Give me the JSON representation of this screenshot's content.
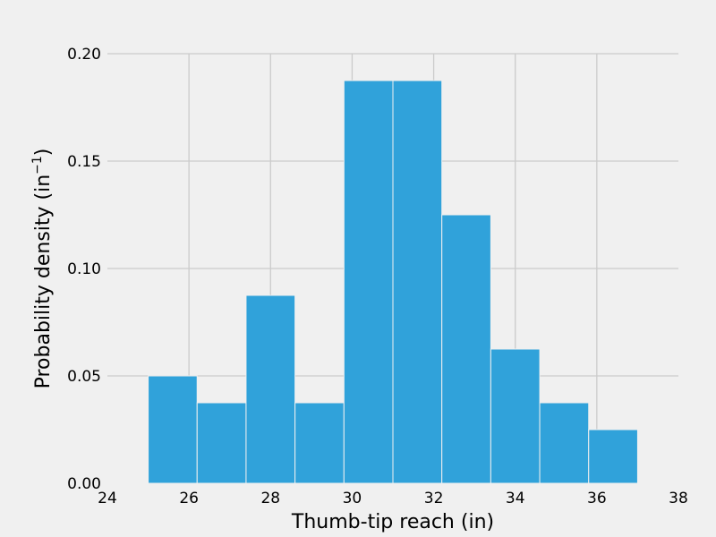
{
  "chart_data": {
    "type": "bar",
    "title": "",
    "xlabel": "Thumb-tip reach (in)",
    "ylabel": "Probability density (in",
    "ylabel_superscript": "−1",
    "ylabel_suffix": ")",
    "xlim": [
      24,
      38
    ],
    "ylim": [
      0,
      0.2
    ],
    "xticks": [
      24,
      26,
      28,
      30,
      32,
      34,
      36,
      38
    ],
    "xtick_labels": [
      "24",
      "26",
      "28",
      "30",
      "32",
      "34",
      "36",
      "38"
    ],
    "yticks": [
      0,
      0.05,
      0.1,
      0.15,
      0.2
    ],
    "ytick_labels": [
      "0.00",
      "0.05",
      "0.10",
      "0.15",
      "0.20"
    ],
    "grid": true,
    "color": "#30a2da",
    "bins": [
      {
        "x0": 25.0,
        "x1": 26.2,
        "value": 0.05
      },
      {
        "x0": 26.2,
        "x1": 27.4,
        "value": 0.0375
      },
      {
        "x0": 27.4,
        "x1": 28.6,
        "value": 0.0875
      },
      {
        "x0": 28.6,
        "x1": 29.8,
        "value": 0.0375
      },
      {
        "x0": 29.8,
        "x1": 31.0,
        "value": 0.1875
      },
      {
        "x0": 31.0,
        "x1": 32.2,
        "value": 0.1875
      },
      {
        "x0": 32.2,
        "x1": 33.4,
        "value": 0.125
      },
      {
        "x0": 33.4,
        "x1": 34.6,
        "value": 0.0625
      },
      {
        "x0": 34.6,
        "x1": 35.8,
        "value": 0.0375
      },
      {
        "x0": 35.8,
        "x1": 37.0,
        "value": 0.025
      }
    ]
  }
}
